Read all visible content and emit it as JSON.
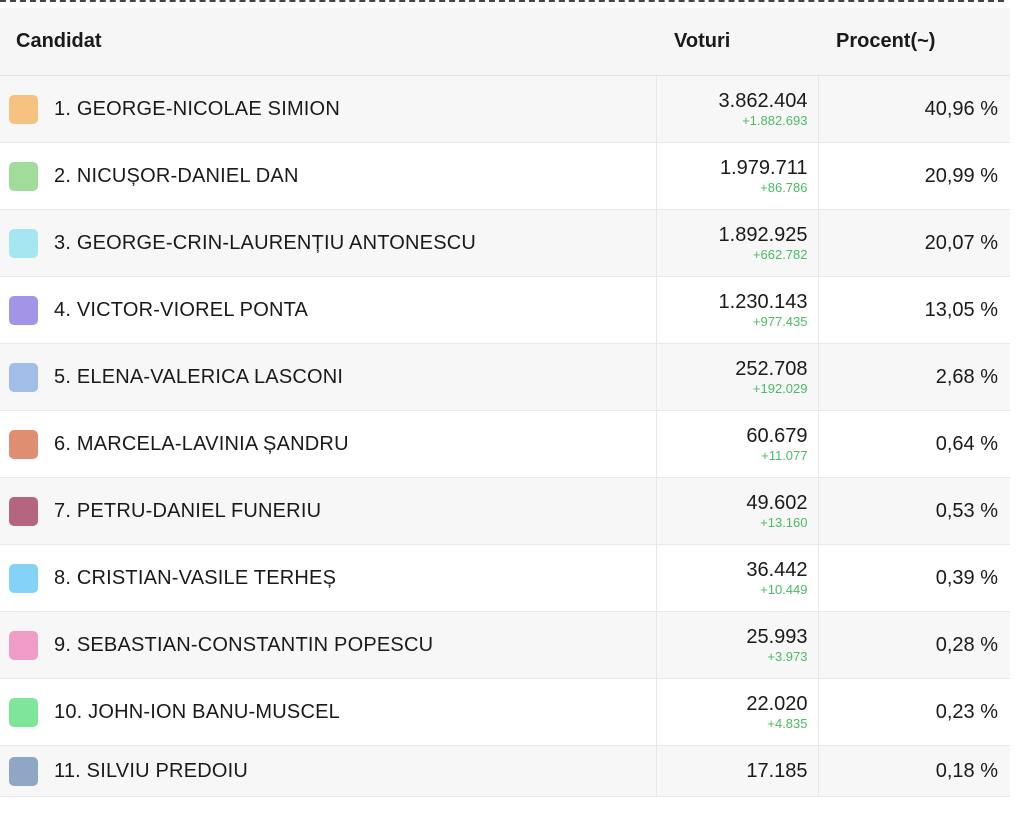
{
  "table": {
    "headers": {
      "candidate": "Candidat",
      "votes": "Voturi",
      "percent": "Procent(~)"
    },
    "rows": [
      {
        "name": "1. GEORGE-NICOLAE SIMION",
        "color": "#f6c27f",
        "votes": "3.862.404",
        "delta": "+1.882.693",
        "percent": "40,96 %"
      },
      {
        "name": "2. NICUȘOR-DANIEL DAN",
        "color": "#a2dc9b",
        "votes": "1.979.711",
        "delta": "+86.786",
        "percent": "20,99 %"
      },
      {
        "name": "3. GEORGE-CRIN-LAURENȚIU ANTONESCU",
        "color": "#a6e6f0",
        "votes": "1.892.925",
        "delta": "+662.782",
        "percent": "20,07 %"
      },
      {
        "name": "4. VICTOR-VIOREL PONTA",
        "color": "#a394e8",
        "votes": "1.230.143",
        "delta": "+977.435",
        "percent": "13,05 %"
      },
      {
        "name": "5. ELENA-VALERICA LASCONI",
        "color": "#a2bde8",
        "votes": "252.708",
        "delta": "+192.029",
        "percent": "2,68 %"
      },
      {
        "name": "6. MARCELA-LAVINIA ȘANDRU",
        "color": "#e08e72",
        "votes": "60.679",
        "delta": "+11.077",
        "percent": "0,64 %"
      },
      {
        "name": "7. PETRU-DANIEL FUNERIU",
        "color": "#b46680",
        "votes": "49.602",
        "delta": "+13.160",
        "percent": "0,53 %"
      },
      {
        "name": "8. CRISTIAN-VASILE TERHEȘ",
        "color": "#85d2f7",
        "votes": "36.442",
        "delta": "+10.449",
        "percent": "0,39 %"
      },
      {
        "name": "9. SEBASTIAN-CONSTANTIN POPESCU",
        "color": "#ef9cc6",
        "votes": "25.993",
        "delta": "+3.973",
        "percent": "0,28 %"
      },
      {
        "name": "10. JOHN-ION BANU-MUSCEL",
        "color": "#7fe59a",
        "votes": "22.020",
        "delta": "+4.835",
        "percent": "0,23 %"
      },
      {
        "name": "11. SILVIU PREDOIU",
        "color": "#8fa6c5",
        "votes": "17.185",
        "delta": "",
        "percent": "0,18 %"
      }
    ]
  }
}
